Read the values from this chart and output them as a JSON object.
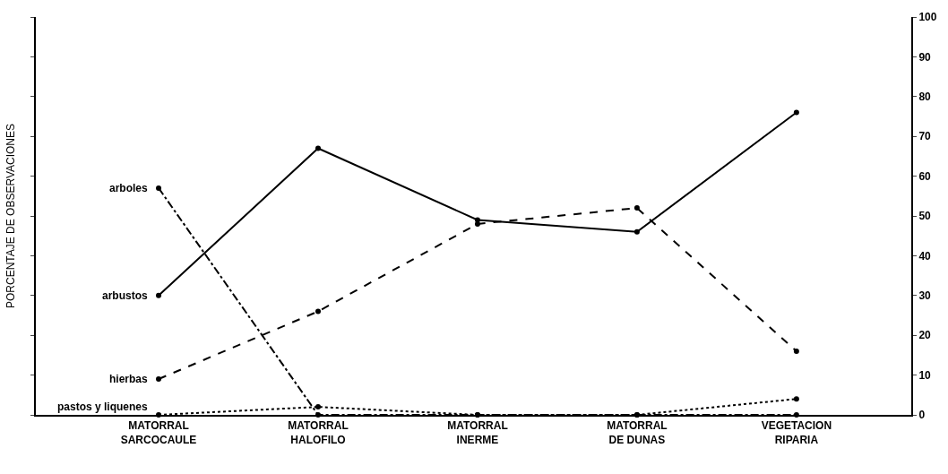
{
  "chart_data": {
    "type": "line",
    "ylabel": "PORCENTAJE DE OBSERVACIONES",
    "categories": [
      "MATORRAL\nSARCOCAULE",
      "MATORRAL\nHALOFILO",
      "MATORRAL\nINERME",
      "MATORRAL\nDE DUNAS",
      "VEGETACION\nRIPARIA"
    ],
    "series": [
      {
        "name": "arboles",
        "color": "#000000",
        "line_style": "dashdot",
        "values": [
          57,
          0,
          0,
          0,
          0
        ]
      },
      {
        "name": "arbustos",
        "color": "#000000",
        "line_style": "solid",
        "values": [
          30,
          67,
          49,
          46,
          76
        ]
      },
      {
        "name": "hierbas",
        "color": "#000000",
        "line_style": "dashed",
        "values": [
          9,
          26,
          48,
          52,
          16
        ]
      },
      {
        "name": "pastos y liquenes",
        "color": "#000000",
        "line_style": "dotted",
        "values": [
          0,
          2,
          0,
          0,
          4
        ]
      }
    ],
    "ylim": [
      0,
      100
    ],
    "yticks": [
      0,
      10,
      20,
      30,
      40,
      50,
      60,
      70,
      80,
      90,
      100
    ],
    "marker": "circle",
    "legend": false
  }
}
